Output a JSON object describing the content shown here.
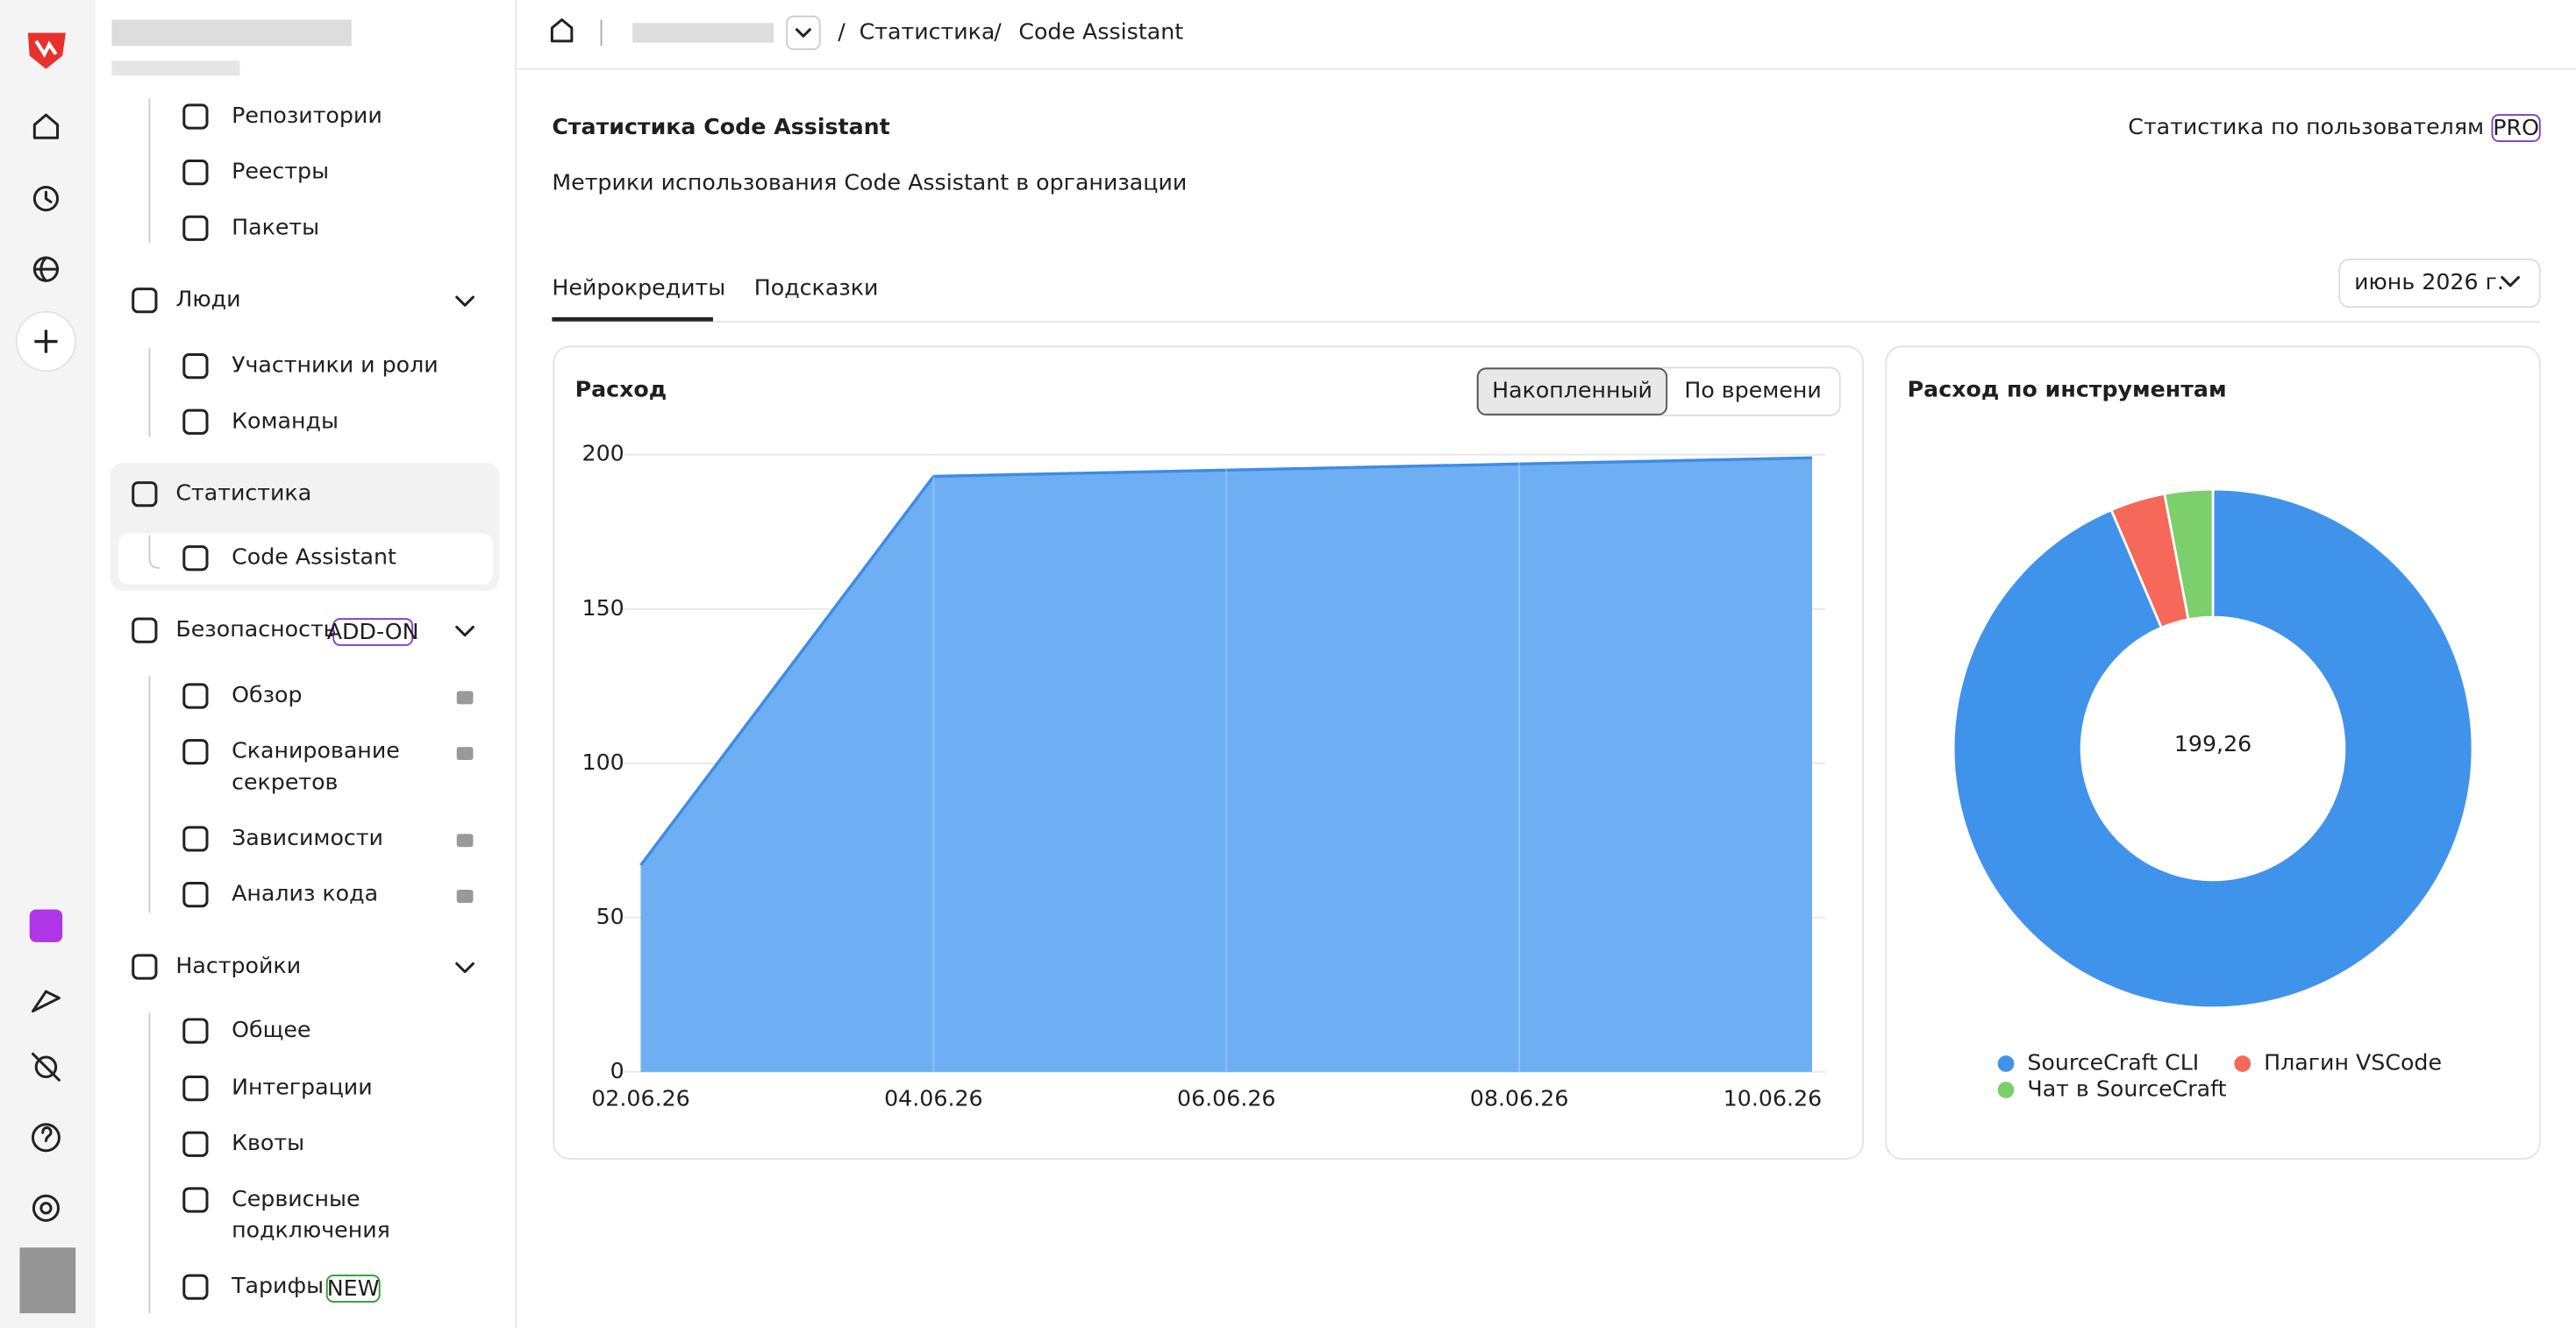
{
  "breadcrumb": {
    "section": "Статистика",
    "current": "Code Assistant"
  },
  "sidebar": {
    "items": [
      "Репозитории",
      "Реестры",
      "Пакеты",
      "Люди",
      "Участники и роли",
      "Команды",
      "Статистика",
      "Code Assistant",
      "Безопасность",
      "Обзор",
      "Сканирование секретов",
      "Зависимости",
      "Анализ кода",
      "Настройки",
      "Общее",
      "Интеграции",
      "Квоты",
      "Сервисные подключения",
      "Тарифы"
    ],
    "badges": {
      "security": "ADD-ON",
      "tariffs": "NEW"
    }
  },
  "header": {
    "title": "Статистика Code Assistant",
    "subtitle": "Метрики использования Code Assistant в организации",
    "link": "Статистика по пользователям",
    "link_badge": "PRO"
  },
  "tabs": [
    "Нейрокредиты",
    "Подсказки"
  ],
  "period": "июнь 2026 г.",
  "toggle": [
    "Накопленный",
    "По времени"
  ],
  "chart_data": [
    {
      "type": "area",
      "title": "Расход",
      "x": [
        "02.06.26",
        "04.06.26",
        "06.06.26",
        "08.06.26",
        "10.06.26"
      ],
      "values": [
        67,
        193,
        195,
        197,
        199
      ],
      "color": "#6eaef3",
      "ylim": [
        0,
        200
      ],
      "yticks": [
        0,
        50,
        100,
        150,
        200
      ],
      "grid": true
    },
    {
      "type": "donut",
      "title": "Расход по инструментам",
      "series": [
        {
          "name": "SourceCraft CLI",
          "color": "#4093ea",
          "value": 186.5
        },
        {
          "name": "Плагин VSCode",
          "color": "#f5685a",
          "value": 6.8
        },
        {
          "name": "Чат в SourceCraft",
          "color": "#7ccf6a",
          "value": 5.96
        }
      ],
      "center": {
        "value": 199.26,
        "label": "199,26"
      }
    }
  ]
}
